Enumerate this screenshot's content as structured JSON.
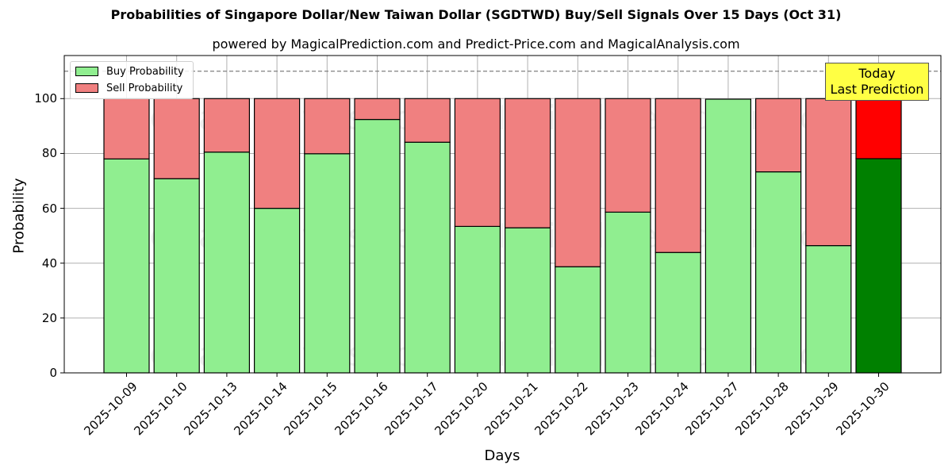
{
  "title": "Probabilities of Singapore Dollar/New Taiwan Dollar (SGDTWD) Buy/Sell Signals Over 15 Days (Oct 31)",
  "subtitle": "powered by MagicalPrediction.com and Predict-Price.com and MagicalAnalysis.com",
  "legend": {
    "buy_label": "Buy Probability",
    "sell_label": "Sell Probability"
  },
  "annotation": {
    "line1": "Today",
    "line2": "Last Prediction"
  },
  "watermarks": [
    "MagicalAnalysis.com",
    "MagicalPrediction.com"
  ],
  "colors": {
    "buy": "#90ee90",
    "sell": "#f08080",
    "buy_today": "#008000",
    "sell_today": "#ff0000",
    "annotation_bg": "#ffff44",
    "grid": "#b0b0b0"
  },
  "chart_data": {
    "type": "bar",
    "stacked": true,
    "title": "Probabilities of Singapore Dollar/New Taiwan Dollar (SGDTWD) Buy/Sell Signals Over 15 Days (Oct 31)",
    "subtitle": "powered by MagicalPrediction.com and Predict-Price.com and MagicalAnalysis.com",
    "xlabel": "Days",
    "ylabel": "Probability",
    "ylim": [
      0,
      115
    ],
    "yticks": [
      0,
      20,
      40,
      60,
      80,
      100
    ],
    "grid": true,
    "legend_position": "upper left",
    "reference_line": {
      "y": 110,
      "style": "dashed"
    },
    "categories": [
      "2025-10-09",
      "2025-10-10",
      "2025-10-13",
      "2025-10-14",
      "2025-10-15",
      "2025-10-16",
      "2025-10-17",
      "2025-10-20",
      "2025-10-21",
      "2025-10-22",
      "2025-10-23",
      "2025-10-24",
      "2025-10-27",
      "2025-10-28",
      "2025-10-29",
      "2025-10-30"
    ],
    "series": [
      {
        "name": "Buy Probability",
        "values": [
          78.0,
          70.8,
          80.5,
          60.0,
          79.9,
          92.4,
          84.1,
          53.4,
          52.9,
          38.7,
          58.6,
          43.9,
          99.8,
          73.3,
          46.4,
          78.1
        ]
      },
      {
        "name": "Sell Probability",
        "values": [
          22.0,
          29.2,
          19.5,
          40.0,
          20.1,
          7.6,
          15.9,
          46.6,
          47.1,
          61.3,
          41.4,
          56.1,
          0.2,
          26.7,
          53.6,
          21.9
        ]
      }
    ],
    "highlight_last": {
      "label": "Today Last Prediction",
      "buy_color": "#008000",
      "sell_color": "#ff0000"
    }
  }
}
